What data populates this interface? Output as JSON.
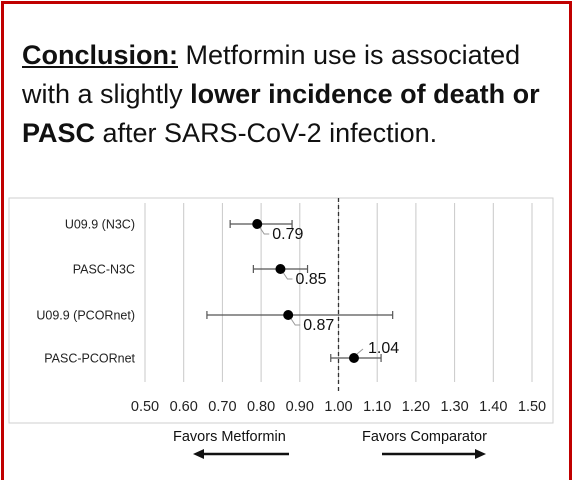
{
  "conclusion": {
    "lead": "Conclusion:",
    "part1": " Metformin use is associated with a slightly ",
    "bold1": "lower incidence of death or PASC",
    "part2": " after SARS-CoV-2 infection."
  },
  "chart_data": {
    "type": "scatter",
    "subtype": "forest-plot",
    "x_axis": {
      "range": [
        0.5,
        1.5
      ],
      "ticks": [
        "0.50",
        "0.60",
        "0.70",
        "0.80",
        "0.90",
        "1.00",
        "1.10",
        "1.20",
        "1.30",
        "1.40",
        "1.50"
      ],
      "reference_line": 1.0
    },
    "grid": "vertical",
    "rows": [
      {
        "label": "U09.9 (N3C)",
        "estimate": 0.79,
        "lower": 0.72,
        "upper": 0.88,
        "value_label": "0.79"
      },
      {
        "label": "PASC-N3C",
        "estimate": 0.85,
        "lower": 0.78,
        "upper": 0.92,
        "value_label": "0.85"
      },
      {
        "label": "U09.9 (PCORnet)",
        "estimate": 0.87,
        "lower": 0.66,
        "upper": 1.14,
        "value_label": "0.87"
      },
      {
        "label": "PASC-PCORnet",
        "estimate": 1.04,
        "lower": 0.98,
        "upper": 1.11,
        "value_label": "1.04"
      }
    ],
    "favors_left": "Favors Metformin",
    "favors_right": "Favors Comparator",
    "colors": {
      "marker": "#000000",
      "ci": "#555555",
      "grid": "#c8c8c8",
      "reference": "#333333",
      "border": "#c00000"
    }
  }
}
